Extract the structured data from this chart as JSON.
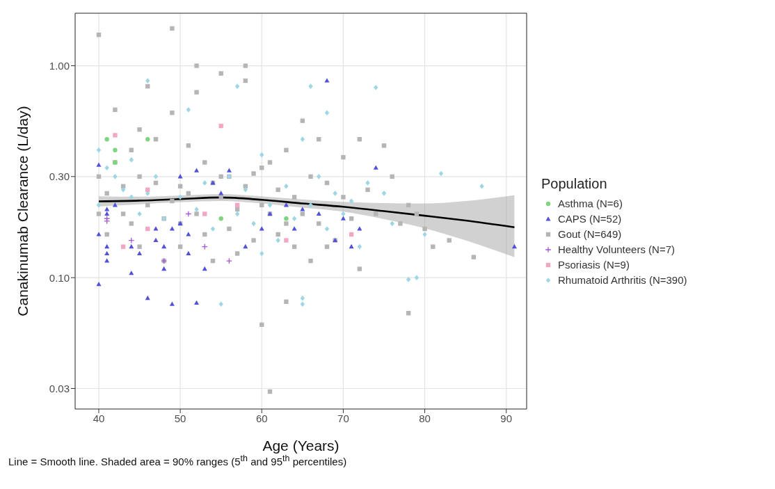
{
  "chart_data": {
    "type": "scatter",
    "xlabel": "Age (Years)",
    "ylabel": "Canakinumab Clearance (L/day)",
    "legend_title": "Population",
    "legend": "right",
    "grid": true,
    "log": "y",
    "xlim": [
      37.1,
      92.5
    ],
    "xticks": [
      40,
      50,
      60,
      70,
      80,
      90
    ],
    "ylim": [
      0.024,
      1.77
    ],
    "yticks": [
      0.03,
      {
        "value": 0.1,
        "label": "0.10"
      },
      {
        "value": 0.3,
        "label": "0.30"
      },
      {
        "value": 1,
        "label": "1.00"
      }
    ],
    "annotations": [
      "Line = Smooth line. Shaded area = 90% ranges (5$^{th}$ and 95$^{th}$ percentiles)"
    ],
    "series": [
      {
        "name": "Asthma (N=6)",
        "color": "#7fd47f",
        "marker": "circle",
        "x": [
          41,
          42,
          42,
          46,
          55,
          63
        ],
        "values": [
          0.45,
          0.4,
          0.35,
          0.45,
          0.19,
          0.19
        ]
      },
      {
        "name": "CAPS (N=52)",
        "color": "#5252d9",
        "marker": "triangle",
        "x": [
          40,
          40,
          40,
          41,
          41,
          41,
          41,
          41,
          42,
          44,
          44,
          45,
          46,
          47,
          47,
          48,
          48,
          49,
          49,
          50,
          50,
          51,
          51,
          52,
          52,
          53,
          54,
          55,
          56,
          58,
          60,
          61,
          63,
          64,
          65,
          67,
          68,
          69,
          70,
          71,
          72,
          74,
          91
        ],
        "values": [
          0.34,
          0.16,
          0.093,
          0.2,
          0.21,
          0.14,
          0.13,
          0.12,
          0.22,
          0.105,
          0.14,
          0.13,
          0.08,
          0.15,
          0.17,
          0.14,
          0.11,
          0.075,
          0.17,
          0.3,
          0.18,
          0.16,
          0.13,
          0.32,
          0.076,
          0.11,
          0.28,
          0.25,
          0.32,
          0.14,
          0.17,
          0.2,
          0.22,
          0.17,
          0.21,
          0.2,
          0.85,
          0.15,
          0.19,
          0.14,
          0.17,
          0.33,
          0.14
        ]
      },
      {
        "name": "Gout (N=649)",
        "color": "#b5b5b5",
        "marker": "square",
        "x": [
          40,
          40,
          40,
          41,
          41,
          42,
          42,
          43,
          43,
          44,
          44,
          45,
          45,
          46,
          46,
          47,
          47,
          48,
          48,
          49,
          49,
          50,
          50,
          50,
          51,
          51,
          52,
          52,
          53,
          53,
          54,
          54,
          55,
          55,
          56,
          56,
          57,
          57,
          58,
          58,
          59,
          59,
          60,
          60,
          61,
          61,
          62,
          62,
          63,
          63,
          64,
          64,
          65,
          65,
          66,
          66,
          67,
          67,
          68,
          68,
          69,
          70,
          70,
          71,
          72,
          73,
          74,
          75,
          76,
          77,
          78,
          78,
          79,
          80,
          81,
          83,
          86,
          49,
          52,
          58,
          60,
          61,
          63,
          55,
          45,
          72
        ],
        "values": [
          1.4,
          0.3,
          0.2,
          0.25,
          0.16,
          0.62,
          0.35,
          0.27,
          0.2,
          0.4,
          0.18,
          0.3,
          0.14,
          0.8,
          0.22,
          0.45,
          0.28,
          0.19,
          0.12,
          1.5,
          0.23,
          0.27,
          0.18,
          0.14,
          0.42,
          0.25,
          1.0,
          0.2,
          0.35,
          0.16,
          0.28,
          0.12,
          0.92,
          0.24,
          0.3,
          0.17,
          0.21,
          0.13,
          1.0,
          0.27,
          0.31,
          0.15,
          0.06,
          0.22,
          0.029,
          0.35,
          0.26,
          0.16,
          0.077,
          0.4,
          0.24,
          0.14,
          0.55,
          0.2,
          0.3,
          0.12,
          0.45,
          0.18,
          0.28,
          0.14,
          0.15,
          0.37,
          0.24,
          0.19,
          0.45,
          0.26,
          0.2,
          0.42,
          0.3,
          0.18,
          0.068,
          0.22,
          0.2,
          0.17,
          0.14,
          0.15,
          0.125,
          0.6,
          0.75,
          0.85,
          0.33,
          0.2,
          0.18,
          0.3,
          0.5,
          0.11
        ]
      },
      {
        "name": "Healthy Volunteers (N=7)",
        "color": "#a656d6",
        "marker": "cross",
        "x": [
          41,
          41,
          44,
          48,
          51,
          53,
          56
        ],
        "values": [
          0.19,
          0.185,
          0.15,
          0.12,
          0.2,
          0.14,
          0.12
        ]
      },
      {
        "name": "Psoriasis (N=9)",
        "color": "#f2a8c4",
        "marker": "square",
        "x": [
          42,
          43,
          46,
          46,
          53,
          55,
          57,
          63,
          71
        ],
        "values": [
          0.47,
          0.14,
          0.26,
          0.17,
          0.2,
          0.52,
          0.22,
          0.15,
          0.16
        ]
      },
      {
        "name": "Rhumatoid Arthritis (N=390)",
        "color": "#9ed6e6",
        "marker": "diamond",
        "x": [
          40,
          40,
          41,
          42,
          43,
          44,
          45,
          46,
          46,
          47,
          48,
          50,
          51,
          52,
          53,
          54,
          55,
          56,
          57,
          57,
          58,
          59,
          60,
          61,
          62,
          63,
          64,
          65,
          65,
          65,
          66,
          66,
          67,
          68,
          68,
          69,
          70,
          71,
          72,
          73,
          74,
          75,
          76,
          78,
          79,
          80,
          82,
          87,
          44,
          60
        ],
        "values": [
          0.4,
          0.22,
          0.33,
          0.3,
          0.26,
          0.36,
          0.2,
          0.85,
          0.25,
          0.3,
          0.19,
          0.24,
          0.62,
          0.21,
          0.28,
          0.17,
          0.075,
          0.3,
          0.8,
          0.2,
          0.26,
          0.18,
          0.38,
          0.22,
          0.15,
          0.27,
          0.19,
          0.45,
          0.075,
          0.08,
          0.8,
          0.22,
          0.3,
          0.6,
          0.17,
          0.25,
          0.2,
          0.23,
          0.14,
          0.28,
          0.79,
          0.25,
          0.18,
          0.098,
          0.1,
          0.16,
          0.31,
          0.27,
          0.24,
          0.13
        ]
      },
      {
        "type": "line",
        "color": "#000000",
        "x": [
          40,
          45,
          50,
          55,
          60,
          65,
          70,
          75,
          80,
          85,
          91
        ],
        "values": [
          0.229,
          0.231,
          0.235,
          0.239,
          0.233,
          0.224,
          0.216,
          0.206,
          0.196,
          0.186,
          0.173
        ],
        "lower": [
          0.217,
          0.222,
          0.227,
          0.23,
          0.224,
          0.214,
          0.205,
          0.189,
          0.171,
          0.15,
          0.125
        ],
        "upper": [
          0.242,
          0.241,
          0.244,
          0.248,
          0.242,
          0.234,
          0.228,
          0.225,
          0.224,
          0.23,
          0.245
        ]
      }
    ]
  }
}
